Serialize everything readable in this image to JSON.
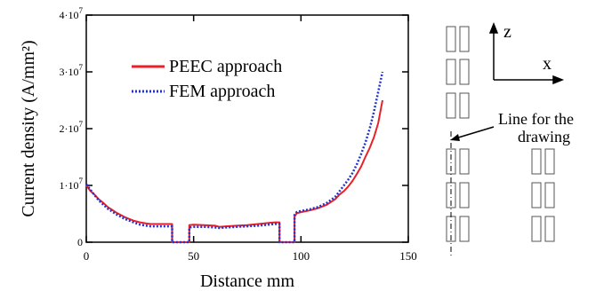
{
  "chart_data": {
    "type": "line",
    "xlabel": "Distance mm",
    "ylabel": "Current density (A/mm²)",
    "xlim": [
      0,
      150
    ],
    "ylim": [
      0,
      40000000
    ],
    "x_ticks": [
      0,
      50,
      100,
      150
    ],
    "x_tick_labels": [
      "0",
      "50",
      "100",
      "150"
    ],
    "y_ticks": [
      0,
      10000000,
      20000000,
      30000000,
      40000000
    ],
    "y_tick_labels": [
      {
        "mantissa": "0",
        "exp": ""
      },
      {
        "mantissa": "1·10",
        "exp": "7"
      },
      {
        "mantissa": "2·10",
        "exp": "7"
      },
      {
        "mantissa": "3·10",
        "exp": "7"
      },
      {
        "mantissa": "4·10",
        "exp": "7"
      }
    ],
    "legend_position": "top-center",
    "series": [
      {
        "name": "PEEC approach",
        "color": "#e8202a",
        "style": "solid",
        "x": [
          0,
          2,
          4,
          6,
          8,
          10,
          12,
          14,
          16,
          18,
          20,
          22,
          25,
          28,
          30,
          35,
          40,
          40,
          48,
          48,
          50,
          55,
          60,
          62,
          65,
          70,
          75,
          80,
          85,
          88,
          90,
          90,
          97,
          97,
          98,
          100,
          104,
          108,
          112,
          116,
          118,
          120,
          122,
          124,
          126,
          128,
          130,
          132,
          134,
          136,
          138
        ],
        "values": [
          10000000,
          9000000,
          8300000,
          7500000,
          6900000,
          6200000,
          5700000,
          5200000,
          4800000,
          4400000,
          4100000,
          3800000,
          3500000,
          3300000,
          3200000,
          3200000,
          3200000,
          0,
          0,
          3000000,
          3100000,
          3000000,
          2900000,
          2700000,
          2800000,
          2900000,
          3000000,
          3200000,
          3400000,
          3500000,
          3500000,
          0,
          0,
          4500000,
          5100000,
          5300000,
          5600000,
          6000000,
          6600000,
          7600000,
          8400000,
          9000000,
          9800000,
          10800000,
          12000000,
          13300000,
          15000000,
          16600000,
          18500000,
          21000000,
          25000000
        ]
      },
      {
        "name": "FEM approach",
        "color": "#2233cc",
        "style": "dotted",
        "x": [
          0,
          2,
          4,
          6,
          8,
          10,
          12,
          14,
          16,
          18,
          20,
          22,
          25,
          28,
          30,
          35,
          40,
          40,
          48,
          48,
          50,
          55,
          60,
          62,
          65,
          70,
          75,
          80,
          85,
          88,
          90,
          90,
          97,
          97,
          98,
          100,
          104,
          108,
          112,
          116,
          118,
          120,
          122,
          124,
          126,
          128,
          130,
          132,
          134,
          136,
          138
        ],
        "values": [
          10200000,
          9200000,
          8200000,
          7300000,
          6600000,
          5900000,
          5400000,
          4900000,
          4500000,
          4100000,
          3800000,
          3500000,
          3100000,
          2900000,
          2800000,
          2800000,
          2800000,
          0,
          0,
          2600000,
          2700000,
          2700000,
          2600000,
          2500000,
          2600000,
          2700000,
          2800000,
          2900000,
          3100000,
          3200000,
          3200000,
          0,
          0,
          4800000,
          5300000,
          5500000,
          5800000,
          6200000,
          6900000,
          8000000,
          9000000,
          10000000,
          11000000,
          12200000,
          13700000,
          15500000,
          17500000,
          20000000,
          23000000,
          26500000,
          30000000
        ]
      }
    ]
  },
  "schematic": {
    "axis_z": "z",
    "axis_x": "x",
    "annotation": "Line for the\ndrawing"
  }
}
